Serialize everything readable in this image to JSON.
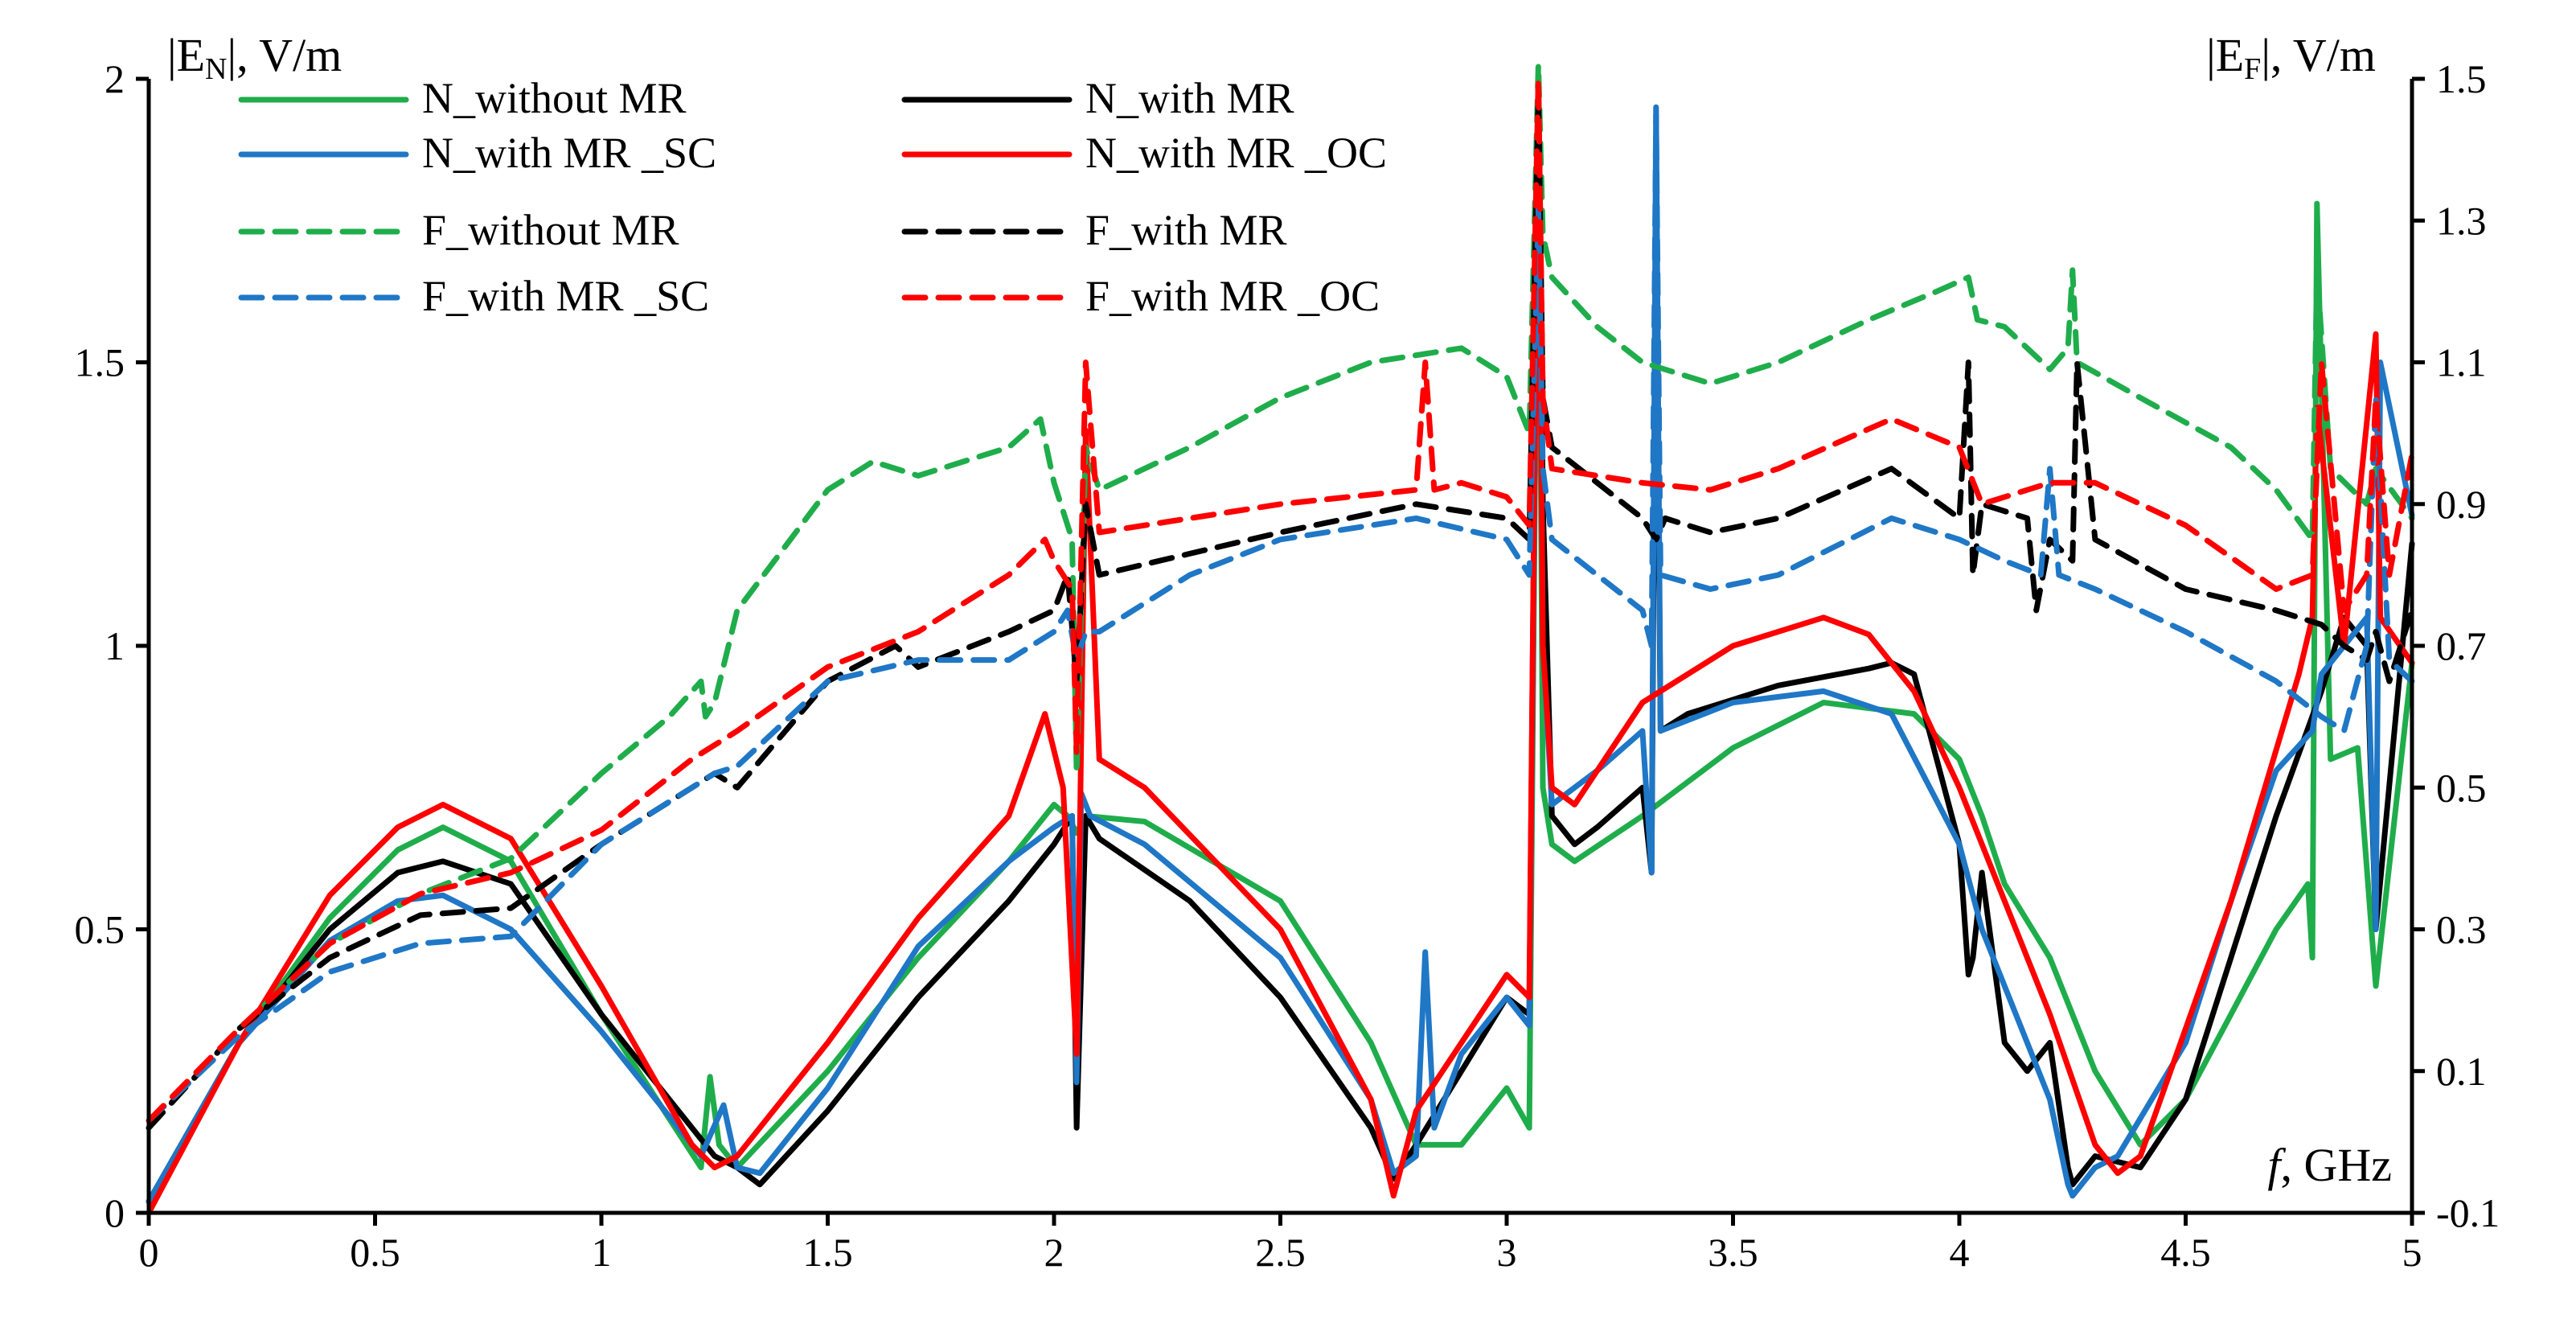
{
  "chart_data": {
    "type": "line",
    "xlabel_italic": "f",
    "xlabel_rest": ", GHz",
    "ylabel_left": {
      "prefix": "|E",
      "sub": "N",
      "suffix": "|, V/m"
    },
    "ylabel_right": {
      "prefix": "|E",
      "sub": "F",
      "suffix": "|, V/m"
    },
    "xlim": [
      0,
      5
    ],
    "ylim_left": [
      0,
      2
    ],
    "ylim_right": [
      -0.1,
      1.5
    ],
    "x_ticks": [
      "0",
      "0.5",
      "1",
      "1.5",
      "2",
      "2.5",
      "3",
      "3.5",
      "4",
      "4.5",
      "5"
    ],
    "y_left_ticks": [
      "0",
      "0.5",
      "1",
      "1.5",
      "2"
    ],
    "y_right_ticks": [
      "-0.1",
      "0.1",
      "0.3",
      "0.5",
      "0.7",
      "0.9",
      "1.1",
      "1.3",
      "1.5"
    ],
    "colors": {
      "green": "#1fad4b",
      "black": "#000000",
      "blue": "#1f77c6",
      "red": "#ff0000"
    },
    "series": [
      {
        "name": "N_without MR",
        "axis": "left",
        "color": "green",
        "dashed": false,
        "x": [
          0,
          0.2,
          0.4,
          0.55,
          0.65,
          0.8,
          1.0,
          1.22,
          1.24,
          1.26,
          1.3,
          1.5,
          1.7,
          1.9,
          2.0,
          2.03,
          2.05,
          2.07,
          2.2,
          2.5,
          2.7,
          2.8,
          2.9,
          3.0,
          3.05,
          3.07,
          3.08,
          3.1,
          3.15,
          3.3,
          3.5,
          3.7,
          3.9,
          4.0,
          4.05,
          4.1,
          4.2,
          4.3,
          4.4,
          4.5,
          4.6,
          4.7,
          4.77,
          4.78,
          4.79,
          4.82,
          4.88,
          4.92,
          5.0
        ],
        "y": [
          0.02,
          0.3,
          0.52,
          0.64,
          0.68,
          0.62,
          0.35,
          0.08,
          0.24,
          0.12,
          0.08,
          0.25,
          0.45,
          0.62,
          0.72,
          0.7,
          0.67,
          0.7,
          0.69,
          0.55,
          0.3,
          0.12,
          0.12,
          0.22,
          0.15,
          1.95,
          0.75,
          0.65,
          0.62,
          0.7,
          0.82,
          0.9,
          0.88,
          0.8,
          0.7,
          0.58,
          0.45,
          0.25,
          0.12,
          0.2,
          0.35,
          0.5,
          0.58,
          0.45,
          1.78,
          0.8,
          0.82,
          0.4,
          0.97
        ]
      },
      {
        "name": "N_with MR",
        "axis": "left",
        "color": "black",
        "dashed": false,
        "x": [
          0,
          0.2,
          0.4,
          0.55,
          0.65,
          0.8,
          1.0,
          1.25,
          1.3,
          1.35,
          1.5,
          1.7,
          1.9,
          2.0,
          2.04,
          2.05,
          2.07,
          2.1,
          2.3,
          2.5,
          2.7,
          2.75,
          2.8,
          2.9,
          3.0,
          3.05,
          3.07,
          3.08,
          3.1,
          3.15,
          3.2,
          3.3,
          3.32,
          3.33,
          3.34,
          3.4,
          3.6,
          3.8,
          3.85,
          3.9,
          4.0,
          4.02,
          4.03,
          4.05,
          4.1,
          4.15,
          4.2,
          4.24,
          4.25,
          4.3,
          4.4,
          4.5,
          4.6,
          4.7,
          4.8,
          4.85,
          4.9,
          4.92,
          5.0
        ],
        "y": [
          0.02,
          0.3,
          0.5,
          0.6,
          0.62,
          0.58,
          0.35,
          0.1,
          0.08,
          0.05,
          0.18,
          0.38,
          0.55,
          0.65,
          0.7,
          0.15,
          0.7,
          0.66,
          0.55,
          0.38,
          0.15,
          0.06,
          0.12,
          0.25,
          0.38,
          0.35,
          2.0,
          1.25,
          0.7,
          0.65,
          0.68,
          0.75,
          0.6,
          1.75,
          0.85,
          0.88,
          0.93,
          0.96,
          0.97,
          0.95,
          0.65,
          0.42,
          0.45,
          0.6,
          0.3,
          0.25,
          0.3,
          0.08,
          0.05,
          0.1,
          0.08,
          0.2,
          0.45,
          0.7,
          0.92,
          1.05,
          1.0,
          0.5,
          1.18
        ]
      },
      {
        "name": "N_with MR _SC",
        "axis": "left",
        "color": "blue",
        "dashed": false,
        "x": [
          0,
          0.2,
          0.4,
          0.55,
          0.65,
          0.8,
          1.0,
          1.22,
          1.27,
          1.3,
          1.35,
          1.5,
          1.7,
          1.9,
          2.0,
          2.04,
          2.05,
          2.06,
          2.08,
          2.2,
          2.5,
          2.7,
          2.75,
          2.8,
          2.82,
          2.84,
          2.9,
          3.0,
          3.05,
          3.07,
          3.08,
          3.1,
          3.2,
          3.3,
          3.32,
          3.33,
          3.34,
          3.5,
          3.7,
          3.85,
          4.0,
          4.05,
          4.2,
          4.24,
          4.25,
          4.3,
          4.35,
          4.5,
          4.6,
          4.7,
          4.78,
          4.8,
          4.9,
          4.92,
          4.93,
          5.0
        ],
        "y": [
          0.02,
          0.3,
          0.48,
          0.55,
          0.56,
          0.5,
          0.32,
          0.1,
          0.19,
          0.08,
          0.07,
          0.22,
          0.47,
          0.62,
          0.68,
          0.7,
          0.23,
          0.74,
          0.7,
          0.65,
          0.45,
          0.2,
          0.07,
          0.1,
          0.46,
          0.15,
          0.28,
          0.38,
          0.33,
          1.95,
          1.0,
          0.72,
          0.78,
          0.85,
          0.6,
          1.95,
          0.85,
          0.9,
          0.92,
          0.88,
          0.65,
          0.5,
          0.2,
          0.05,
          0.03,
          0.08,
          0.1,
          0.3,
          0.55,
          0.78,
          0.85,
          0.95,
          1.05,
          0.5,
          1.5,
          1.23
        ]
      },
      {
        "name": "N_with MR _OC",
        "axis": "left",
        "color": "red",
        "dashed": false,
        "x": [
          0,
          0.2,
          0.4,
          0.55,
          0.65,
          0.8,
          1.0,
          1.2,
          1.25,
          1.3,
          1.5,
          1.7,
          1.9,
          1.98,
          2.02,
          2.05,
          2.07,
          2.1,
          2.2,
          2.5,
          2.7,
          2.75,
          2.8,
          2.9,
          3.0,
          3.05,
          3.07,
          3.08,
          3.1,
          3.15,
          3.3,
          3.5,
          3.7,
          3.8,
          3.9,
          4.0,
          4.1,
          4.2,
          4.3,
          4.35,
          4.4,
          4.6,
          4.75,
          4.78,
          4.79,
          4.85,
          4.92,
          4.93,
          5.0
        ],
        "y": [
          0.0,
          0.3,
          0.56,
          0.68,
          0.72,
          0.66,
          0.4,
          0.12,
          0.08,
          0.1,
          0.3,
          0.52,
          0.7,
          0.88,
          0.75,
          0.28,
          1.38,
          0.8,
          0.75,
          0.5,
          0.2,
          0.03,
          0.18,
          0.3,
          0.42,
          0.38,
          2.0,
          1.0,
          0.75,
          0.72,
          0.9,
          1.0,
          1.05,
          1.02,
          0.92,
          0.75,
          0.55,
          0.35,
          0.12,
          0.07,
          0.1,
          0.55,
          0.95,
          1.05,
          1.42,
          1.0,
          1.55,
          1.05,
          0.97
        ]
      },
      {
        "name": "F_without MR",
        "axis": "right",
        "color": "green",
        "dashed": true,
        "x": [
          0,
          0.2,
          0.4,
          0.6,
          0.8,
          1.0,
          1.15,
          1.22,
          1.23,
          1.25,
          1.3,
          1.5,
          1.6,
          1.7,
          1.9,
          1.97,
          2.0,
          2.04,
          2.05,
          2.07,
          2.1,
          2.3,
          2.5,
          2.7,
          2.9,
          3.0,
          3.05,
          3.07,
          3.08,
          3.1,
          3.2,
          3.3,
          3.45,
          3.6,
          3.8,
          3.95,
          4.02,
          4.04,
          4.1,
          4.2,
          4.24,
          4.25,
          4.26,
          4.4,
          4.6,
          4.7,
          4.78,
          4.79,
          4.82,
          4.9,
          4.92,
          5.0
        ],
        "y": [
          0.02,
          0.16,
          0.28,
          0.35,
          0.4,
          0.52,
          0.6,
          0.65,
          0.6,
          0.62,
          0.75,
          0.92,
          0.96,
          0.94,
          0.98,
          1.02,
          0.93,
          0.85,
          0.52,
          0.98,
          0.92,
          0.98,
          1.05,
          1.1,
          1.12,
          1.08,
          1.0,
          1.52,
          1.28,
          1.22,
          1.15,
          1.1,
          1.07,
          1.1,
          1.16,
          1.2,
          1.22,
          1.16,
          1.15,
          1.09,
          1.12,
          1.23,
          1.1,
          1.05,
          0.98,
          0.92,
          0.85,
          1.23,
          0.95,
          0.9,
          0.95,
          0.88
        ]
      },
      {
        "name": "F_with MR",
        "axis": "right",
        "color": "black",
        "dashed": true,
        "x": [
          0,
          0.2,
          0.4,
          0.6,
          0.8,
          1.0,
          1.2,
          1.25,
          1.3,
          1.5,
          1.65,
          1.7,
          1.9,
          2.0,
          2.03,
          2.05,
          2.07,
          2.1,
          2.3,
          2.5,
          2.8,
          3.0,
          3.05,
          3.07,
          3.08,
          3.1,
          3.2,
          3.3,
          3.33,
          3.35,
          3.45,
          3.6,
          3.85,
          4.0,
          4.02,
          4.03,
          4.05,
          4.15,
          4.17,
          4.2,
          4.25,
          4.26,
          4.3,
          4.5,
          4.7,
          4.8,
          4.85,
          4.9,
          4.92,
          4.95,
          5.0
        ],
        "y": [
          0.02,
          0.16,
          0.26,
          0.32,
          0.33,
          0.42,
          0.5,
          0.52,
          0.5,
          0.65,
          0.7,
          0.67,
          0.72,
          0.75,
          0.8,
          0.65,
          0.9,
          0.8,
          0.83,
          0.86,
          0.9,
          0.88,
          0.85,
          1.48,
          1.05,
          0.98,
          0.93,
          0.88,
          0.85,
          0.88,
          0.86,
          0.88,
          0.95,
          0.88,
          1.1,
          0.8,
          0.9,
          0.88,
          0.75,
          0.85,
          0.82,
          1.1,
          0.85,
          0.78,
          0.75,
          0.73,
          0.7,
          0.68,
          0.72,
          0.65,
          0.75
        ]
      },
      {
        "name": "F_with MR _SC",
        "axis": "right",
        "color": "blue",
        "dashed": true,
        "x": [
          0,
          0.2,
          0.4,
          0.6,
          0.8,
          1.0,
          1.2,
          1.25,
          1.3,
          1.5,
          1.7,
          1.9,
          2.0,
          2.03,
          2.05,
          2.07,
          2.1,
          2.3,
          2.5,
          2.8,
          3.0,
          3.05,
          3.07,
          3.08,
          3.1,
          3.2,
          3.3,
          3.32,
          3.33,
          3.34,
          3.45,
          3.6,
          3.85,
          4.0,
          4.1,
          4.18,
          4.2,
          4.22,
          4.3,
          4.5,
          4.7,
          4.8,
          4.85,
          4.9,
          4.92,
          4.95,
          5.0
        ],
        "y": [
          0.03,
          0.15,
          0.24,
          0.28,
          0.29,
          0.42,
          0.5,
          0.52,
          0.53,
          0.65,
          0.68,
          0.68,
          0.72,
          0.75,
          0.68,
          0.72,
          0.72,
          0.8,
          0.85,
          0.88,
          0.85,
          0.8,
          1.32,
          0.95,
          0.85,
          0.8,
          0.75,
          0.7,
          1.45,
          0.8,
          0.78,
          0.8,
          0.88,
          0.85,
          0.82,
          0.8,
          0.95,
          0.8,
          0.78,
          0.72,
          0.65,
          0.6,
          0.58,
          0.7,
          1.05,
          0.68,
          0.65
        ]
      },
      {
        "name": "F_with MR _OC",
        "axis": "right",
        "color": "red",
        "dashed": true,
        "x": [
          0,
          0.2,
          0.4,
          0.6,
          0.8,
          1.0,
          1.2,
          1.25,
          1.3,
          1.5,
          1.7,
          1.9,
          1.98,
          2.0,
          2.04,
          2.05,
          2.07,
          2.1,
          2.3,
          2.5,
          2.8,
          2.82,
          2.84,
          2.9,
          3.0,
          3.05,
          3.07,
          3.08,
          3.1,
          3.3,
          3.45,
          3.6,
          3.85,
          4.0,
          4.05,
          4.2,
          4.3,
          4.5,
          4.7,
          4.78,
          4.8,
          4.85,
          4.9,
          4.92,
          4.95,
          5.0
        ],
        "y": [
          0.03,
          0.16,
          0.28,
          0.35,
          0.38,
          0.44,
          0.54,
          0.56,
          0.58,
          0.67,
          0.72,
          0.8,
          0.85,
          0.82,
          0.78,
          0.55,
          1.1,
          0.86,
          0.88,
          0.9,
          0.92,
          1.1,
          0.92,
          0.93,
          0.91,
          0.87,
          1.5,
          1.05,
          0.95,
          0.93,
          0.92,
          0.95,
          1.02,
          0.98,
          0.9,
          0.93,
          0.93,
          0.87,
          0.78,
          0.8,
          1.1,
          0.75,
          0.8,
          1.05,
          0.8,
          0.97
        ]
      }
    ]
  }
}
